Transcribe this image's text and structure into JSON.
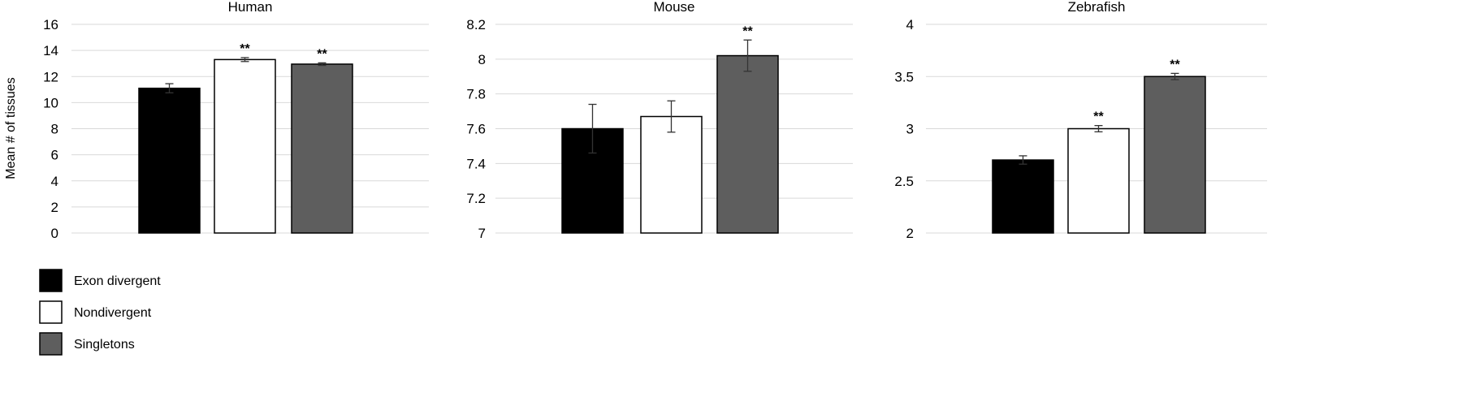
{
  "ylabel": "Mean # of tissues",
  "legend": [
    {
      "label": "Exon divergent",
      "color": "#000000"
    },
    {
      "label": "Nondivergent",
      "color": "#ffffff"
    },
    {
      "label": "Singletons",
      "color": "#5e5e5e"
    }
  ],
  "chart_data": [
    {
      "type": "bar",
      "title": "Human",
      "categories": [
        "Exon divergent",
        "Nondivergent",
        "Singletons"
      ],
      "values": [
        11.1,
        13.3,
        12.95
      ],
      "errors": [
        0.35,
        0.15,
        0.1
      ],
      "significance": [
        "",
        "**",
        "**"
      ],
      "ylim": [
        0,
        16
      ],
      "yticks": [
        "0",
        "2",
        "4",
        "6",
        "8",
        "10",
        "12",
        "14",
        "16"
      ],
      "grid": true
    },
    {
      "type": "bar",
      "title": "Mouse",
      "categories": [
        "Exon divergent",
        "Nondivergent",
        "Singletons"
      ],
      "values": [
        7.6,
        7.67,
        8.02
      ],
      "errors": [
        0.14,
        0.09,
        0.09
      ],
      "significance": [
        "",
        "",
        "**"
      ],
      "ylim": [
        7,
        8.2
      ],
      "yticks": [
        "7",
        "7.2",
        "7.4",
        "7.6",
        "7.8",
        "8",
        "8.2"
      ],
      "grid": true
    },
    {
      "type": "bar",
      "title": "Zebrafish",
      "categories": [
        "Exon divergent",
        "Nondivergent",
        "Singletons"
      ],
      "values": [
        2.7,
        3.0,
        3.5
      ],
      "errors": [
        0.04,
        0.03,
        0.03
      ],
      "significance": [
        "",
        "**",
        "**"
      ],
      "ylim": [
        2,
        4
      ],
      "yticks": [
        "2",
        "2.5",
        "3",
        "3.5",
        "4"
      ],
      "grid": true
    }
  ]
}
